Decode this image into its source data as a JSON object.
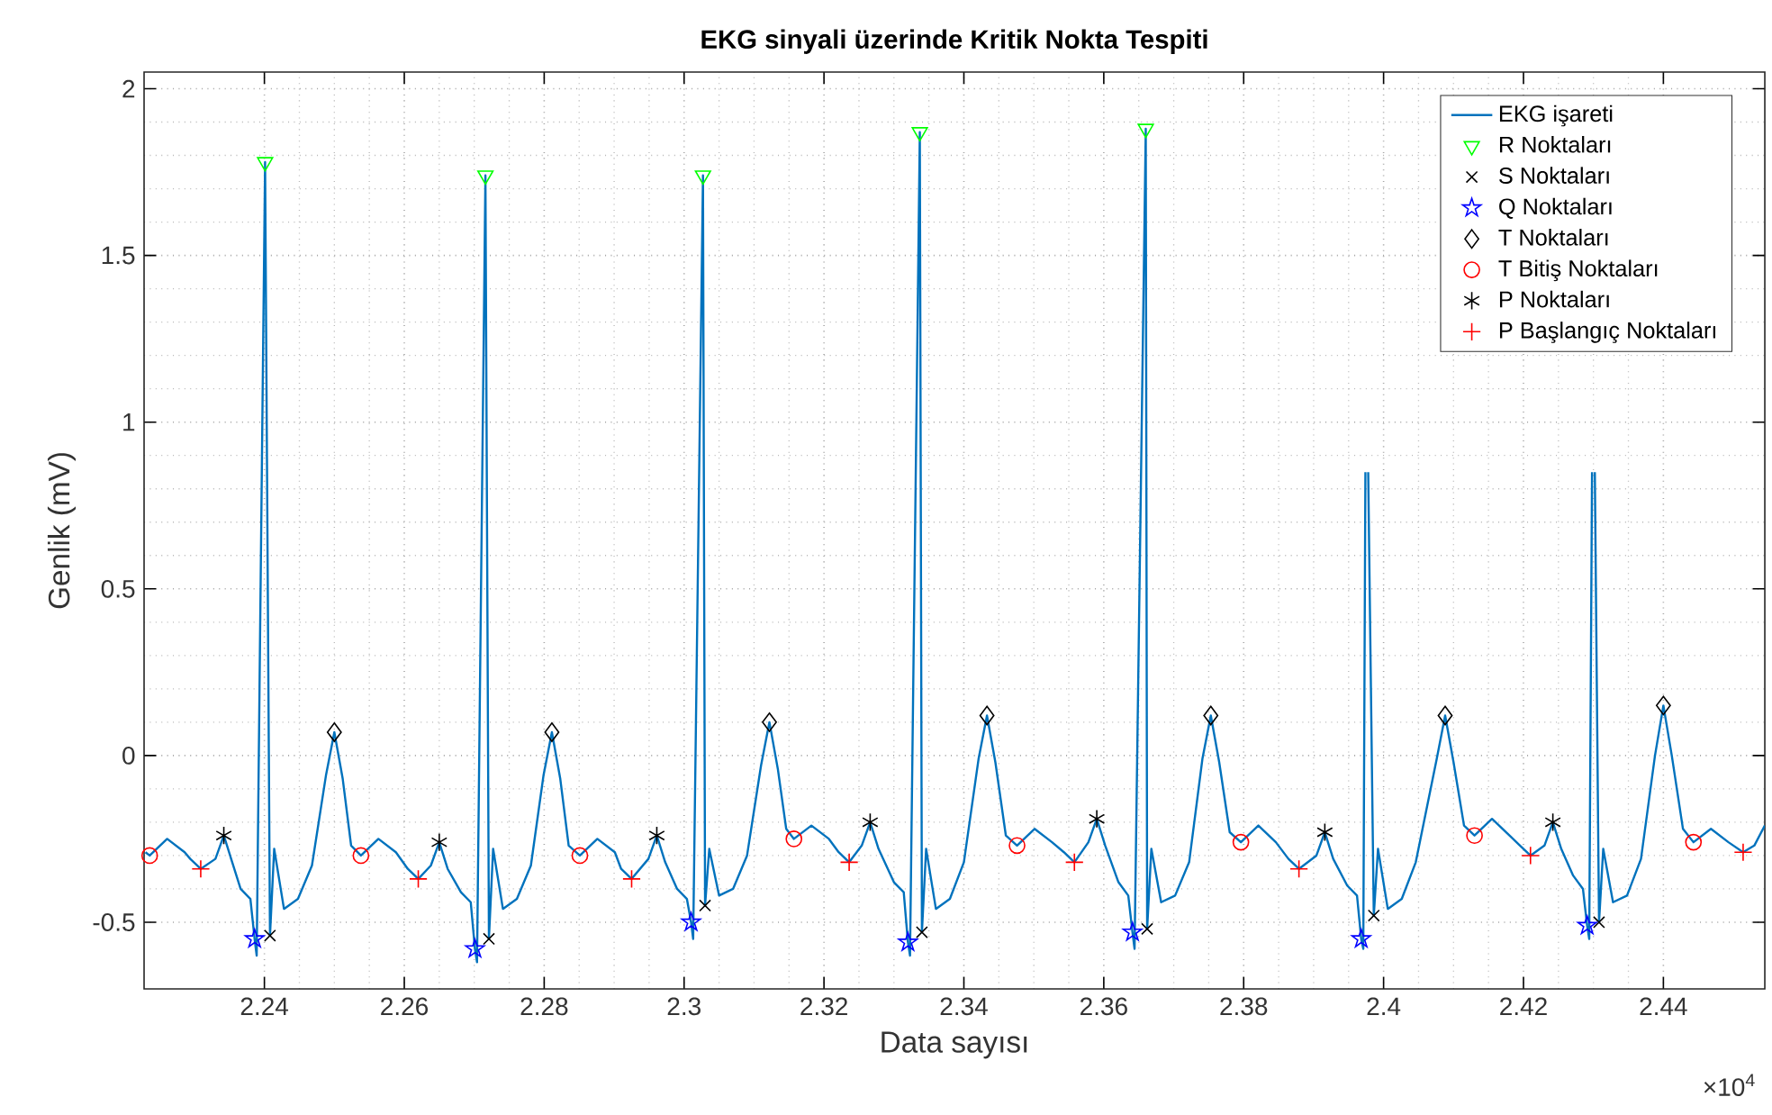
{
  "chart_data": {
    "type": "line",
    "title": "EKG sinyali üzerinde Kritik Nokta Tespiti",
    "xlabel": "Data sayısı",
    "ylabel": "Genlik (mV)",
    "xlim": [
      2.2228,
      2.4545
    ],
    "ylim": [
      -0.7,
      2.05
    ],
    "xticks": [
      2.24,
      2.26,
      2.28,
      2.3,
      2.32,
      2.34,
      2.36,
      2.38,
      2.4,
      2.42,
      2.44
    ],
    "yticks": [
      -0.5,
      0,
      0.5,
      1,
      1.5,
      2
    ],
    "grid": true,
    "legend": "top right",
    "annotations": [
      "×10$^{4}$"
    ],
    "series": [
      {
        "name": "EKG işareti",
        "type": "line",
        "marker": "none",
        "color": "#0072bd",
        "x": [
          2.223,
          2.2236,
          2.2261,
          2.2286,
          2.2294,
          2.2309,
          2.233,
          2.2342,
          2.2354,
          2.2366,
          2.238,
          2.2386,
          2.2389,
          2.2401,
          2.2408,
          2.2414,
          2.2428,
          2.2448,
          2.2468,
          2.2488,
          2.25,
          2.2512,
          2.2524,
          2.2538,
          2.2563,
          2.2588,
          2.2605,
          2.262,
          2.2638,
          2.265,
          2.2662,
          2.2681,
          2.2695,
          2.2701,
          2.2704,
          2.2716,
          2.2721,
          2.2727,
          2.2741,
          2.2761,
          2.2781,
          2.2799,
          2.2811,
          2.2823,
          2.2835,
          2.2851,
          2.2876,
          2.2901,
          2.291,
          2.2925,
          2.2949,
          2.2961,
          2.2973,
          2.299,
          2.3004,
          2.301,
          2.3013,
          2.3027,
          2.303,
          2.3036,
          2.305,
          2.307,
          2.309,
          2.311,
          2.3122,
          2.3134,
          2.3146,
          2.3157,
          2.3182,
          2.3207,
          2.3221,
          2.3236,
          2.3254,
          2.3266,
          2.3278,
          2.33,
          2.3314,
          2.332,
          2.3323,
          2.3337,
          2.334,
          2.3346,
          2.336,
          2.338,
          2.34,
          2.3421,
          2.3433,
          2.3445,
          2.346,
          2.3476,
          2.3501,
          2.3526,
          2.3543,
          2.3558,
          2.3578,
          2.359,
          2.3602,
          2.3621,
          2.3635,
          2.3641,
          2.3644,
          2.366,
          2.3662,
          2.3668,
          2.3682,
          2.3702,
          2.3722,
          2.3741,
          2.3753,
          2.3765,
          2.378,
          2.3796,
          2.3821,
          2.3846,
          2.3864,
          2.3879,
          2.3904,
          2.3916,
          2.3928,
          2.3948,
          2.3962,
          2.3968,
          2.3971,
          2.3974,
          2.3976,
          2.3978,
          2.3986,
          2.3992,
          2.4006,
          2.4026,
          2.4046,
          2.4076,
          2.4088,
          2.41,
          2.4115,
          2.413,
          2.4155,
          2.418,
          2.4195,
          2.421,
          2.423,
          2.4242,
          2.4254,
          2.4271,
          2.4285,
          2.4291,
          2.4294,
          2.4298,
          2.43,
          2.4302,
          2.4308,
          2.4314,
          2.4328,
          2.4348,
          2.4368,
          2.4388,
          2.44,
          2.4412,
          2.4428,
          2.4443,
          2.4468,
          2.4493,
          2.4514,
          2.453,
          2.4545
        ],
        "values": [
          -0.29,
          -0.3,
          -0.25,
          -0.29,
          -0.31,
          -0.34,
          -0.31,
          -0.24,
          -0.32,
          -0.4,
          -0.43,
          -0.55,
          -0.6,
          1.78,
          -0.54,
          -0.28,
          -0.46,
          -0.43,
          -0.33,
          -0.06,
          0.07,
          -0.07,
          -0.27,
          -0.3,
          -0.25,
          -0.29,
          -0.34,
          -0.37,
          -0.33,
          -0.26,
          -0.34,
          -0.41,
          -0.44,
          -0.58,
          -0.62,
          1.74,
          -0.55,
          -0.28,
          -0.46,
          -0.43,
          -0.33,
          -0.06,
          0.07,
          -0.07,
          -0.27,
          -0.3,
          -0.25,
          -0.29,
          -0.34,
          -0.37,
          -0.31,
          -0.24,
          -0.32,
          -0.4,
          -0.43,
          -0.5,
          -0.55,
          1.74,
          -0.45,
          -0.28,
          -0.42,
          -0.4,
          -0.3,
          -0.03,
          0.1,
          -0.04,
          -0.22,
          -0.25,
          -0.21,
          -0.25,
          -0.29,
          -0.32,
          -0.27,
          -0.2,
          -0.28,
          -0.38,
          -0.41,
          -0.56,
          -0.6,
          1.87,
          -0.53,
          -0.28,
          -0.46,
          -0.43,
          -0.32,
          -0.01,
          0.12,
          -0.02,
          -0.24,
          -0.27,
          -0.22,
          -0.26,
          -0.29,
          -0.32,
          -0.26,
          -0.19,
          -0.27,
          -0.38,
          -0.42,
          -0.53,
          -0.58,
          1.88,
          -0.52,
          -0.28,
          -0.44,
          -0.42,
          -0.32,
          -0.01,
          0.12,
          -0.02,
          -0.23,
          -0.26,
          -0.21,
          -0.26,
          -0.31,
          -0.34,
          -0.3,
          -0.23,
          -0.31,
          -0.39,
          -0.42,
          -0.55,
          -0.58,
          0.85,
          null,
          0.85,
          -0.48,
          -0.28,
          -0.46,
          -0.43,
          -0.32,
          -0.01,
          0.12,
          -0.02,
          -0.21,
          -0.24,
          -0.19,
          -0.24,
          -0.27,
          -0.3,
          -0.27,
          -0.2,
          -0.28,
          -0.36,
          -0.4,
          -0.51,
          -0.55,
          0.85,
          null,
          0.85,
          -0.5,
          -0.28,
          -0.44,
          -0.42,
          -0.31,
          0.0,
          0.15,
          0.0,
          -0.22,
          -0.26,
          -0.22,
          -0.26,
          -0.29,
          -0.27,
          -0.21
        ]
      },
      {
        "name": "R Noktaları",
        "type": "scatter",
        "marker": "triangle",
        "color": "#00ff00",
        "x": [
          2.2401,
          2.2716,
          2.3027,
          2.3337,
          2.366
        ],
        "values": [
          1.78,
          1.74,
          1.74,
          1.87,
          1.88
        ]
      },
      {
        "name": "S Noktaları",
        "type": "scatter",
        "marker": "cross",
        "color": "#000000",
        "x": [
          2.2408,
          2.2721,
          2.303,
          2.334,
          2.3662,
          2.3986,
          2.4308
        ],
        "values": [
          -0.54,
          -0.55,
          -0.45,
          -0.53,
          -0.52,
          -0.48,
          -0.5
        ]
      },
      {
        "name": "Q Noktaları",
        "type": "scatter",
        "marker": "star",
        "color": "#0000ff",
        "x": [
          2.2386,
          2.2701,
          2.301,
          2.332,
          2.3641,
          2.3968,
          2.4291
        ],
        "values": [
          -0.55,
          -0.58,
          -0.5,
          -0.56,
          -0.53,
          -0.55,
          -0.51
        ]
      },
      {
        "name": "T Noktaları",
        "type": "scatter",
        "marker": "diamond",
        "color": "#000000",
        "x": [
          2.25,
          2.2811,
          2.3122,
          2.3433,
          2.3753,
          2.4088,
          2.44
        ],
        "values": [
          0.07,
          0.07,
          0.1,
          0.12,
          0.12,
          0.12,
          0.15
        ]
      },
      {
        "name": "T Bitiş Noktaları",
        "type": "scatter",
        "marker": "circle",
        "color": "#ff0000",
        "x": [
          2.2236,
          2.2538,
          2.2851,
          2.3157,
          2.3476,
          2.3796,
          2.413,
          2.4443
        ],
        "values": [
          -0.3,
          -0.3,
          -0.3,
          -0.25,
          -0.27,
          -0.26,
          -0.24,
          -0.26
        ]
      },
      {
        "name": "P Noktaları",
        "type": "scatter",
        "color": "#000000",
        "x": [
          2.2342,
          2.265,
          2.2961,
          2.3266,
          2.359,
          2.3916,
          2.4242
        ],
        "values": [
          -0.24,
          -0.26,
          -0.24,
          -0.2,
          -0.19,
          -0.23,
          -0.2
        ]
      },
      {
        "name": "P Başlangıç Noktaları",
        "type": "scatter",
        "marker": "plus",
        "color": "#ff0000",
        "x": [
          2.2309,
          2.262,
          2.2925,
          2.3236,
          2.3558,
          2.3879,
          2.421,
          2.4514
        ],
        "values": [
          -0.34,
          -0.37,
          -0.37,
          -0.32,
          -0.32,
          -0.34,
          -0.3,
          -0.29
        ]
      }
    ]
  }
}
